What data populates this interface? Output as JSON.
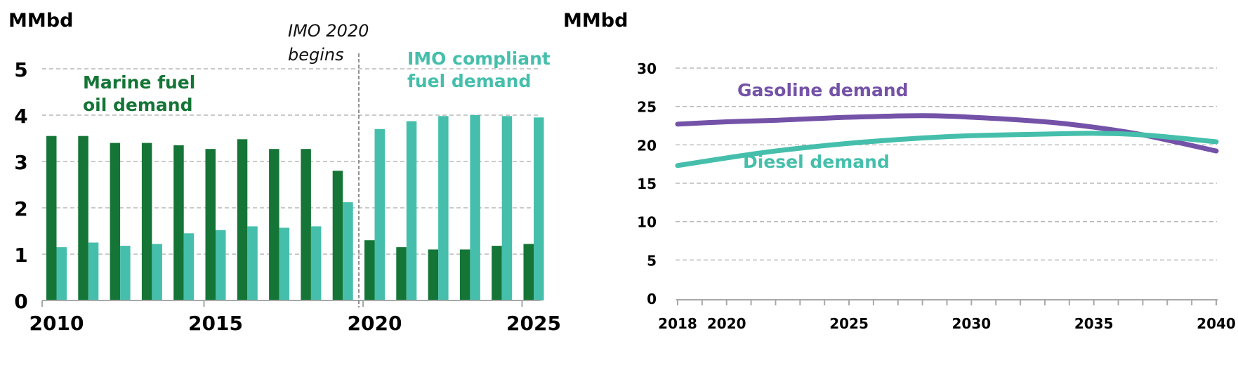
{
  "colors": {
    "marine_fuel": "#147536",
    "imo_compliant": "#45bfab",
    "gasoline": "#7452a8",
    "diesel": "#45bfab"
  },
  "chart_data": [
    {
      "type": "bar",
      "unit_label": "MMbd",
      "title": "",
      "xlabel": "",
      "ylabel": "MMbd",
      "ylim": [
        0,
        5
      ],
      "yticks": [
        "0",
        "1",
        "2",
        "3",
        "4",
        "5"
      ],
      "xtick_labels": [
        "2010",
        "2015",
        "2020",
        "2025"
      ],
      "grid": true,
      "categories": [
        "2010",
        "2011",
        "2012",
        "2013",
        "2014",
        "2015",
        "2016",
        "2017",
        "2018",
        "2019",
        "2020",
        "2021",
        "2022",
        "2023",
        "2024",
        "2025"
      ],
      "series": [
        {
          "name": "Marine fuel oil demand",
          "label_lines": [
            "Marine fuel",
            "oil demand"
          ],
          "values": [
            3.55,
            3.55,
            3.4,
            3.4,
            3.35,
            3.27,
            3.48,
            3.27,
            3.27,
            2.8,
            1.3,
            1.15,
            1.1,
            1.1,
            1.18,
            1.22
          ]
        },
        {
          "name": "IMO compliant fuel demand",
          "label_lines": [
            "IMO compliant",
            "fuel demand"
          ],
          "values": [
            1.15,
            1.25,
            1.18,
            1.22,
            1.45,
            1.52,
            1.6,
            1.57,
            1.6,
            2.12,
            3.7,
            3.87,
            3.98,
            4.0,
            3.98,
            3.95
          ]
        }
      ],
      "annotation": {
        "text_lines": [
          "IMO 2020",
          "begins"
        ],
        "x": "2019.5"
      }
    },
    {
      "type": "line",
      "unit_label": "MMbd",
      "title": "",
      "xlabel": "",
      "ylabel": "MMbd",
      "ylim": [
        0,
        30
      ],
      "xlim": [
        2018,
        2040
      ],
      "yticks": [
        "0",
        "5",
        "10",
        "15",
        "20",
        "25",
        "30"
      ],
      "xtick_labels": [
        "2018",
        "2020",
        "2025",
        "2030",
        "2035",
        "2040"
      ],
      "grid": true,
      "x": [
        2018,
        2020,
        2022,
        2025,
        2028,
        2030,
        2033,
        2035,
        2037,
        2040
      ],
      "series": [
        {
          "name": "Gasoline demand",
          "values": [
            22.7,
            23.0,
            23.2,
            23.6,
            23.8,
            23.6,
            23.0,
            22.3,
            21.3,
            19.2
          ]
        },
        {
          "name": "Diesel demand",
          "values": [
            17.3,
            18.3,
            19.2,
            20.2,
            20.9,
            21.2,
            21.4,
            21.5,
            21.3,
            20.4
          ]
        }
      ]
    }
  ]
}
